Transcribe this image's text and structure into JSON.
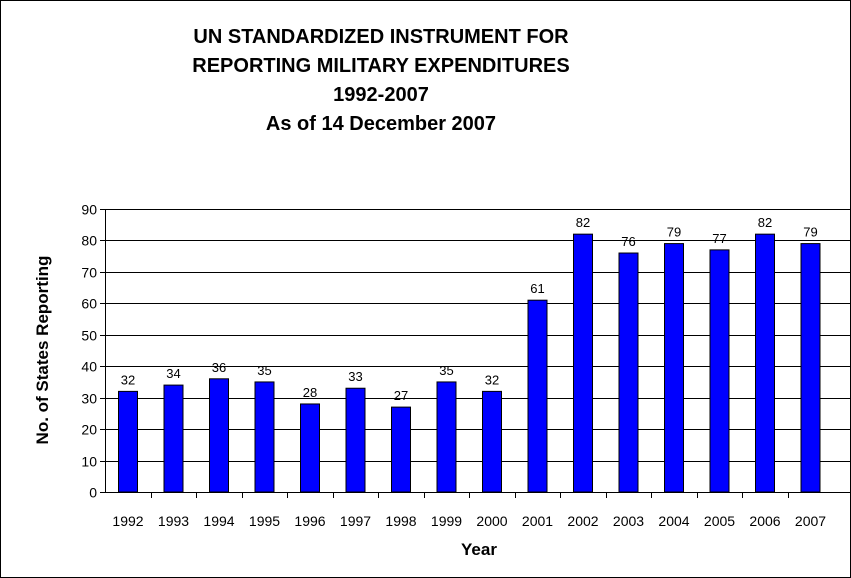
{
  "chart_data": {
    "type": "bar",
    "title": [
      "UN STANDARDIZED INSTRUMENT FOR",
      "REPORTING MILITARY EXPENDITURES",
      "1992-2007",
      "As of 14 December 2007"
    ],
    "xlabel": "Year",
    "ylabel": "No. of States Reporting",
    "categories": [
      "1992",
      "1993",
      "1994",
      "1995",
      "1996",
      "1997",
      "1998",
      "1999",
      "2000",
      "2001",
      "2002",
      "2003",
      "2004",
      "2005",
      "2006",
      "2007"
    ],
    "values": [
      32,
      34,
      36,
      35,
      28,
      33,
      27,
      35,
      32,
      61,
      82,
      76,
      79,
      77,
      82,
      79
    ],
    "ylim": [
      0,
      90
    ],
    "yticks": [
      0,
      10,
      20,
      30,
      40,
      50,
      60,
      70,
      80,
      90
    ],
    "grid": true,
    "bar_color": "#0000ff",
    "data_labels": true
  }
}
